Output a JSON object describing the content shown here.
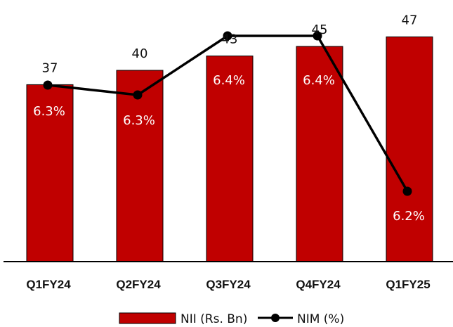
{
  "chart_data": {
    "type": "bar",
    "categories": [
      "Q1FY24",
      "Q2FY24",
      "Q3FY24",
      "Q4FY24",
      "Q1FY25"
    ],
    "series": [
      {
        "name": "NII (Rs. Bn)",
        "type": "bar",
        "values": [
          37,
          40,
          43,
          45,
          47
        ],
        "value_labels": [
          "37",
          "40",
          "43",
          "45",
          "47"
        ],
        "color": "#c00000"
      },
      {
        "name": "NIM (%)",
        "type": "line",
        "values": [
          6.3,
          6.3,
          6.4,
          6.4,
          6.2
        ],
        "value_labels": [
          "6.3%",
          "6.3%",
          "6.4%",
          "6.4%",
          "6.2%"
        ],
        "color": "#000000"
      }
    ],
    "title": "",
    "xlabel": "",
    "ylabel": "",
    "legend": "bottom",
    "grid": false
  },
  "colors": {
    "bar": "#c00000",
    "bar_border": "#000000",
    "line": "#000000",
    "nim_label": "#ffffff"
  }
}
